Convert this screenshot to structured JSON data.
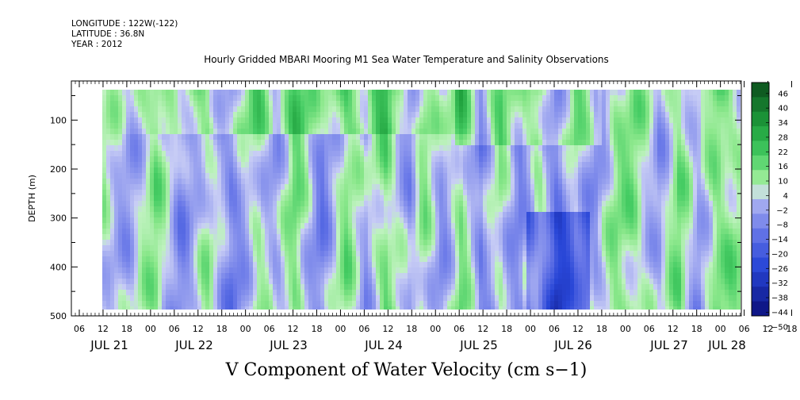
{
  "header": {
    "longitude": "LONGITUDE : 122W(-122)",
    "latitude": "LATITUDE : 36.8N",
    "year": "YEAR : 2012",
    "title": "Hourly Gridded MBARI Mooring M1 Sea Water Temperature and Salinity Observations"
  },
  "footer": {
    "variable_title": "V Component of Water Velocity (cm s−1)"
  },
  "chart_data": {
    "type": "heatmap",
    "title": "Hourly Gridded MBARI Mooring M1 Sea Water Temperature and Salinity Observations",
    "xlabel": "",
    "ylabel": "DEPTH (m)",
    "variable": "V Component of Water Velocity (cm s−1)",
    "x_axis": {
      "hour_tick_labels": [
        "06",
        "12",
        "18",
        "00",
        "06",
        "12",
        "18",
        "00",
        "06",
        "12",
        "18",
        "00",
        "06",
        "12",
        "18",
        "00",
        "06",
        "12",
        "18",
        "00",
        "06",
        "12",
        "18",
        "00",
        "06",
        "12",
        "18",
        "00",
        "06",
        "12",
        "18",
        "00"
      ],
      "day_labels": [
        "JUL 21",
        "JUL 22",
        "JUL 23",
        "JUL 24",
        "JUL 25",
        "JUL 26",
        "JUL 27",
        "JUL 28"
      ]
    },
    "y_axis": {
      "tick_labels": [
        "100",
        "200",
        "300",
        "400",
        "500"
      ],
      "range": [
        20,
        500
      ],
      "inverted": true
    },
    "colorbar": {
      "levels": [
        "46",
        "40",
        "34",
        "28",
        "22",
        "16",
        "10",
        "4",
        "−2",
        "−8",
        "−14",
        "−20",
        "−26",
        "−32",
        "−38",
        "−44",
        "−50"
      ],
      "min": -50,
      "max": 46,
      "colors": {
        "strong_positive": "#0c4d1c",
        "positive": "#33cc5a",
        "weak_positive": "#a8eca0",
        "weak_negative": "#b9bdf2",
        "negative": "#6a78e6",
        "strong_negative": "#0a0f7a"
      }
    },
    "field_summary": "Alternating vertical bands of northward (green, ~+4 to +28) and southward (blue, ~−2 to −26) flow; strongest positive values near the surface around JUL 24–25 and JUL 26–27, strongest negative values at depth near JUL 26."
  }
}
